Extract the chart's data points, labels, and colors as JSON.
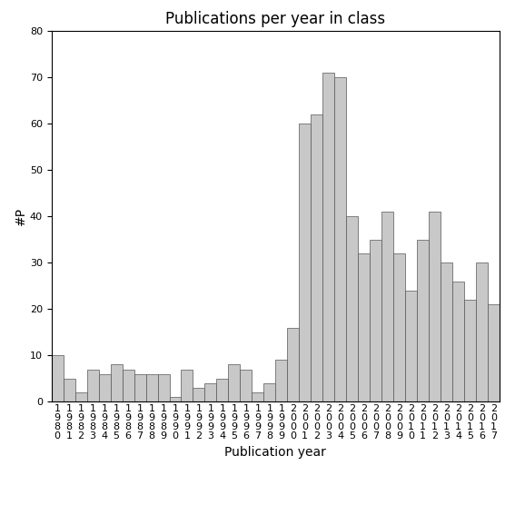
{
  "title": "Publications per year in class",
  "xlabel": "Publication year",
  "ylabel": "#P",
  "years": [
    1980,
    1981,
    1982,
    1983,
    1984,
    1985,
    1986,
    1987,
    1988,
    1989,
    1990,
    1991,
    1992,
    1993,
    1994,
    1995,
    1996,
    1997,
    1998,
    1999,
    2000,
    2001,
    2002,
    2003,
    2004,
    2005,
    2006,
    2007,
    2008,
    2009,
    2010,
    2011,
    2012,
    2013,
    2014,
    2015,
    2016,
    2017
  ],
  "values": [
    10,
    5,
    2,
    7,
    6,
    8,
    7,
    6,
    6,
    6,
    1,
    7,
    3,
    4,
    5,
    8,
    7,
    2,
    4,
    9,
    16,
    60,
    62,
    71,
    70,
    40,
    32,
    35,
    41,
    32,
    24,
    35,
    41,
    30,
    26,
    22,
    30,
    21
  ],
  "ylim": [
    0,
    80
  ],
  "yticks": [
    0,
    10,
    20,
    30,
    40,
    50,
    60,
    70,
    80
  ],
  "bar_color": "#c8c8c8",
  "bar_edgecolor": "#555555",
  "bg_color": "#ffffff",
  "title_fontsize": 12,
  "label_fontsize": 10,
  "tick_fontsize": 8
}
